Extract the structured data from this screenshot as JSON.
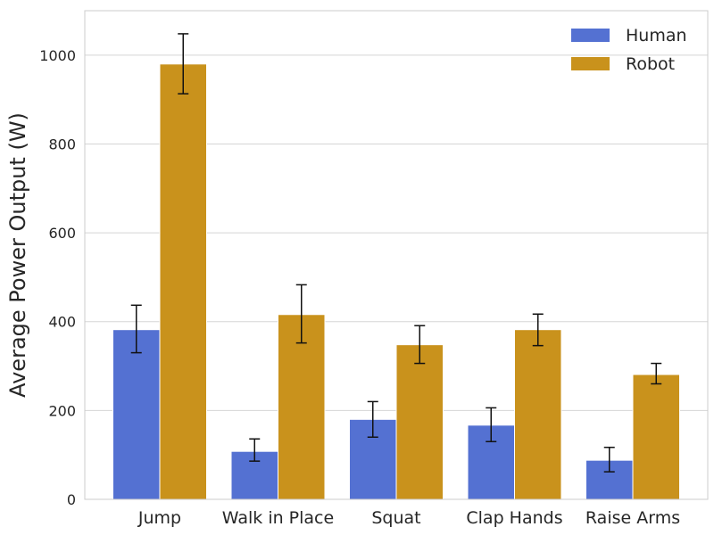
{
  "chart_data": {
    "type": "bar",
    "title": "",
    "xlabel": "",
    "ylabel": "Average Power Output (W)",
    "ylim": [
      0,
      1100
    ],
    "yticks": [
      0,
      200,
      400,
      600,
      800,
      1000
    ],
    "grid": "y",
    "legend_position": "top-right",
    "categories": [
      "Jump",
      "Walk in Place",
      "Squat",
      "Clap Hands",
      "Raise Arms"
    ],
    "series": [
      {
        "name": "Human",
        "color": "#5471D2",
        "values": [
          382,
          108,
          180,
          167,
          88
        ],
        "error": [
          [
            330,
            437
          ],
          [
            86,
            136
          ],
          [
            140,
            220
          ],
          [
            130,
            206
          ],
          [
            62,
            117
          ]
        ]
      },
      {
        "name": "Robot",
        "color": "#C9921C",
        "values": [
          980,
          416,
          348,
          382,
          281
        ],
        "error": [
          [
            913,
            1048
          ],
          [
            352,
            483
          ],
          [
            306,
            391
          ],
          [
            346,
            417
          ],
          [
            260,
            306
          ]
        ]
      }
    ]
  }
}
